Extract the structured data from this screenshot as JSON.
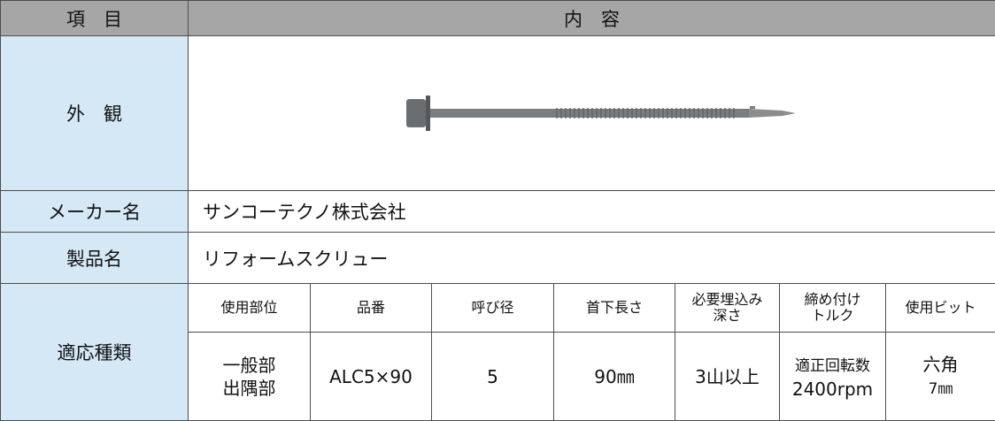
{
  "header": {
    "item": "項　目",
    "content": "内　容"
  },
  "appearance": {
    "label": "外　観"
  },
  "maker": {
    "label": "メーカー名",
    "value": "サンコーテクノ株式会社"
  },
  "product": {
    "label": "製品名",
    "value": "リフォームスクリュー"
  },
  "spec": {
    "label": "適応種類",
    "columns": [
      [
        "使用部位"
      ],
      [
        "品番"
      ],
      [
        "呼び径"
      ],
      [
        "首下長さ"
      ],
      [
        "必要埋込み",
        "深さ"
      ],
      [
        "締め付け",
        "トルク"
      ],
      [
        "使用ビット"
      ]
    ],
    "values": [
      [
        "一般部",
        "出隅部"
      ],
      [
        "ALC5×90"
      ],
      [
        "5"
      ],
      [
        "90㎜"
      ],
      [
        "3山以上"
      ],
      [
        "適正回転数",
        "2400rpm"
      ],
      [
        "六角",
        "7㎜"
      ]
    ]
  }
}
